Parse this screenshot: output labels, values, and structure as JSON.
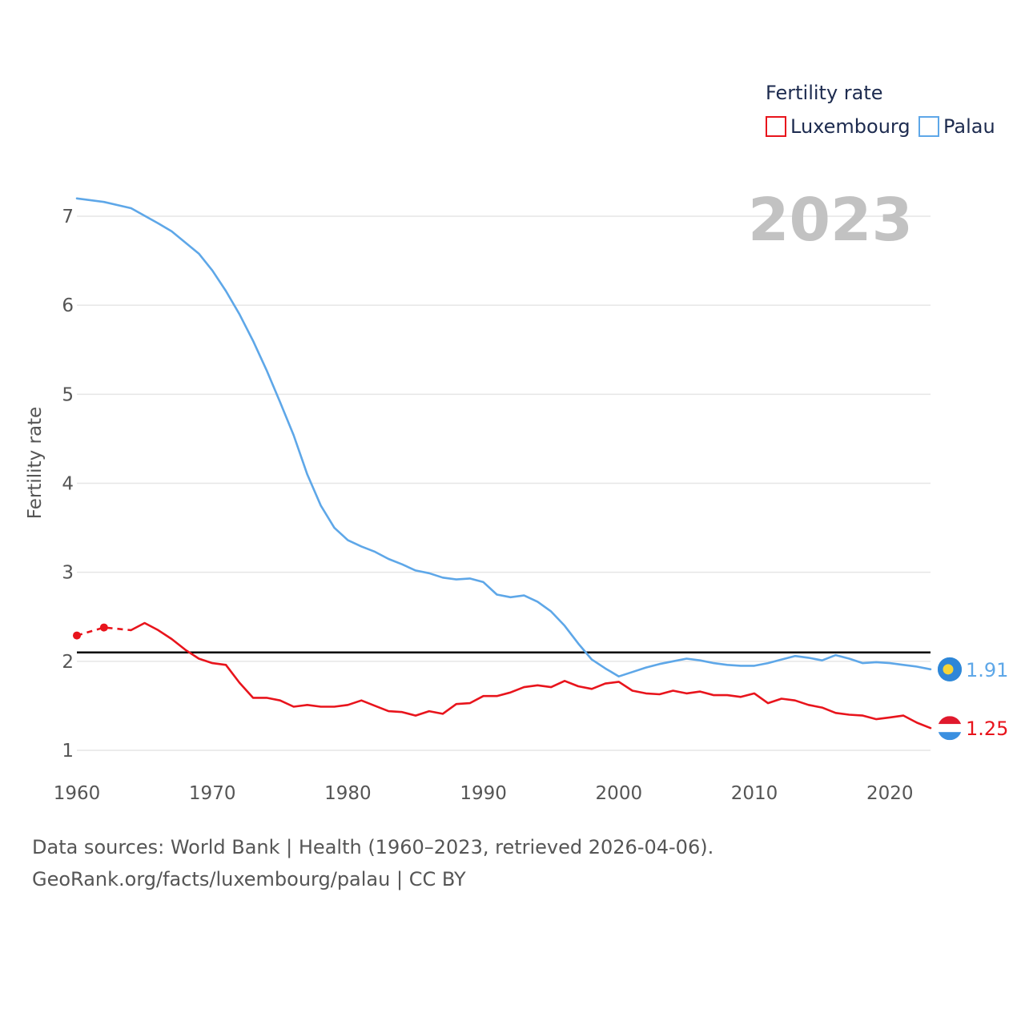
{
  "chart_data": {
    "type": "line",
    "legend_title": "Fertility rate",
    "ylabel": "Fertility rate",
    "xlabel": "",
    "year_label": "2023",
    "xlim": [
      1960,
      2023
    ],
    "ylim": [
      0.9,
      7.3
    ],
    "y_ticks": [
      1,
      2,
      3,
      4,
      5,
      6,
      7
    ],
    "x_ticks": [
      1960,
      1970,
      1980,
      1990,
      2000,
      2010,
      2020
    ],
    "reference_line": {
      "value": 2.1
    },
    "legend_position": "top-right",
    "series": [
      {
        "name": "Luxembourg",
        "color": "#e8141c",
        "end_label": "1.25",
        "flag_icon": "luxembourg-flag-icon",
        "dashed_points": [
          [
            1960,
            2.29
          ],
          [
            1962,
            2.38
          ],
          [
            1964,
            2.35
          ]
        ],
        "x": [
          1964,
          1965,
          1966,
          1967,
          1968,
          1969,
          1970,
          1971,
          1972,
          1973,
          1974,
          1975,
          1976,
          1977,
          1978,
          1979,
          1980,
          1981,
          1982,
          1983,
          1984,
          1985,
          1986,
          1987,
          1988,
          1989,
          1990,
          1991,
          1992,
          1993,
          1994,
          1995,
          1996,
          1997,
          1998,
          1999,
          2000,
          2001,
          2002,
          2003,
          2004,
          2005,
          2006,
          2007,
          2008,
          2009,
          2010,
          2011,
          2012,
          2013,
          2014,
          2015,
          2016,
          2017,
          2018,
          2019,
          2020,
          2021,
          2022,
          2023
        ],
        "values": [
          2.35,
          2.43,
          2.35,
          2.25,
          2.13,
          2.03,
          1.98,
          1.96,
          1.76,
          1.59,
          1.59,
          1.56,
          1.49,
          1.51,
          1.49,
          1.49,
          1.51,
          1.56,
          1.5,
          1.44,
          1.43,
          1.39,
          1.44,
          1.41,
          1.52,
          1.53,
          1.61,
          1.61,
          1.65,
          1.71,
          1.73,
          1.71,
          1.78,
          1.72,
          1.69,
          1.75,
          1.77,
          1.67,
          1.64,
          1.63,
          1.67,
          1.64,
          1.66,
          1.62,
          1.62,
          1.6,
          1.64,
          1.53,
          1.58,
          1.56,
          1.51,
          1.48,
          1.42,
          1.4,
          1.39,
          1.35,
          1.37,
          1.39,
          1.31,
          1.25
        ]
      },
      {
        "name": "Palau",
        "color": "#5ea7e8",
        "end_label": "1.91",
        "flag_icon": "palau-flag-icon",
        "x": [
          1960,
          1962,
          1964,
          1966,
          1967,
          1969,
          1970,
          1971,
          1972,
          1973,
          1974,
          1975,
          1976,
          1977,
          1978,
          1979,
          1980,
          1981,
          1982,
          1983,
          1984,
          1985,
          1986,
          1987,
          1988,
          1989,
          1990,
          1991,
          1992,
          1993,
          1994,
          1995,
          1996,
          1997,
          1998,
          1999,
          2000,
          2001,
          2002,
          2003,
          2004,
          2005,
          2006,
          2007,
          2008,
          2009,
          2010,
          2011,
          2012,
          2013,
          2014,
          2015,
          2016,
          2017,
          2018,
          2019,
          2020,
          2021,
          2022,
          2023
        ],
        "values": [
          7.2,
          7.16,
          7.09,
          6.92,
          6.83,
          6.58,
          6.39,
          6.16,
          5.9,
          5.6,
          5.27,
          4.91,
          4.54,
          4.1,
          3.75,
          3.5,
          3.36,
          3.29,
          3.23,
          3.15,
          3.09,
          3.02,
          2.99,
          2.94,
          2.92,
          2.93,
          2.89,
          2.75,
          2.72,
          2.74,
          2.67,
          2.56,
          2.4,
          2.2,
          2.02,
          1.92,
          1.83,
          1.88,
          1.93,
          1.97,
          2.0,
          2.03,
          2.01,
          1.98,
          1.96,
          1.95,
          1.95,
          1.98,
          2.02,
          2.06,
          2.04,
          2.01,
          2.07,
          2.03,
          1.98,
          1.99,
          1.98,
          1.96,
          1.94,
          1.91
        ]
      }
    ]
  },
  "footer": {
    "source_line": "Data sources: World Bank | Health (1960–2023, retrieved 2026-04-06).",
    "credit_line": "GeoRank.org/facts/luxembourg/palau | CC BY"
  }
}
